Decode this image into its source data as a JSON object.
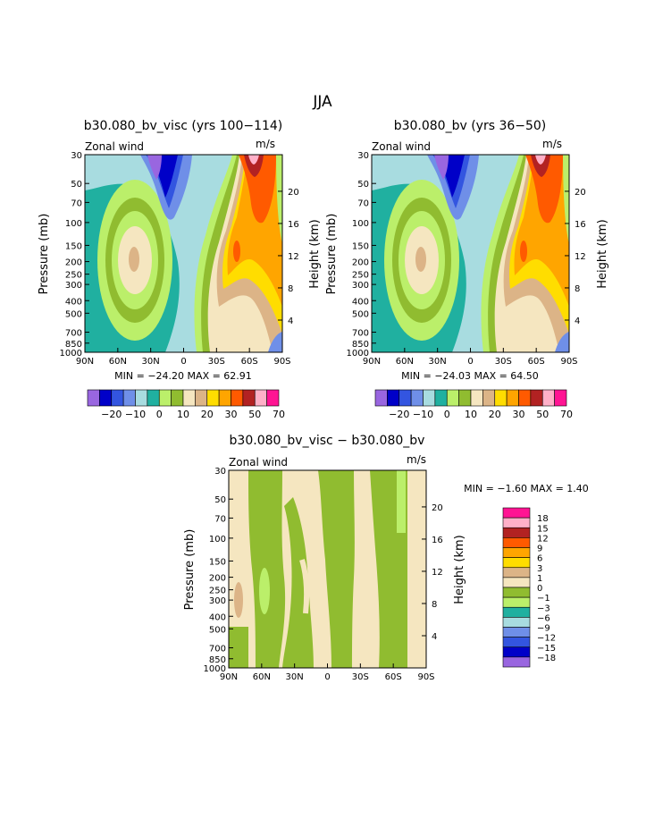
{
  "page_title": "JJA",
  "colors": {
    "palette_main": [
      "#9966e0",
      "#0000c8",
      "#3355e0",
      "#6f8fe8",
      "#a8dce0",
      "#20b0a0",
      "#bbef6a",
      "#90bc30",
      "#f5e6c0",
      "#dcb487",
      "#ffdd00",
      "#ffa500",
      "#ff5a00",
      "#b22222",
      "#ffb0c8",
      "#ff1493"
    ],
    "palette_diff": [
      "#ff1493",
      "#ffb0c8",
      "#b22222",
      "#ff5a00",
      "#ffa500",
      "#ffdd00",
      "#dcb487",
      "#f5e6c0",
      "#90bc30",
      "#bbef6a",
      "#20b0a0",
      "#a8dce0",
      "#6f8fe8",
      "#3355e0",
      "#0000c8",
      "#9966e0"
    ]
  },
  "chart_data": [
    {
      "type": "heatmap",
      "title": "b30.080_bv_visc (yrs 100−114)",
      "subtitle_left": "Zonal wind",
      "subtitle_right": "m/s",
      "xlabel": "",
      "ylabel": "Pressure (mb)",
      "ylabel_right": "Height (km)",
      "x_ticks": [
        "90N",
        "60N",
        "30N",
        "0",
        "30S",
        "60S",
        "90S"
      ],
      "y_ticks": [
        "30",
        "50",
        "70",
        "100",
        "150",
        "200",
        "250",
        "300",
        "400",
        "500",
        "700",
        "850",
        "1000"
      ],
      "y_right_ticks": [
        "20",
        "16",
        "12",
        "8",
        "4"
      ],
      "minmax": "MIN = −24.20   MAX =   62.91",
      "legend_labels": [
        "−20",
        "−10",
        "0",
        "10",
        "20",
        "30",
        "50",
        "70"
      ],
      "min": -24.2,
      "max": 62.91
    },
    {
      "type": "heatmap",
      "title": "b30.080_bv (yrs 36−50)",
      "subtitle_left": "Zonal wind",
      "subtitle_right": "m/s",
      "xlabel": "",
      "ylabel": "Pressure (mb)",
      "ylabel_right": "Height (km)",
      "x_ticks": [
        "90N",
        "60N",
        "30N",
        "0",
        "30S",
        "60S",
        "90S"
      ],
      "y_ticks": [
        "30",
        "50",
        "70",
        "100",
        "150",
        "200",
        "250",
        "300",
        "400",
        "500",
        "700",
        "850",
        "1000"
      ],
      "y_right_ticks": [
        "20",
        "16",
        "12",
        "8",
        "4"
      ],
      "minmax": "MIN = −24.03   MAX =   64.50",
      "legend_labels": [
        "−20",
        "−10",
        "0",
        "10",
        "20",
        "30",
        "50",
        "70"
      ],
      "min": -24.03,
      "max": 64.5
    },
    {
      "type": "heatmap",
      "title": "b30.080_bv_visc − b30.080_bv",
      "subtitle_left": "Zonal wind",
      "subtitle_right": "m/s",
      "xlabel": "",
      "ylabel": "Pressure (mb)",
      "ylabel_right": "Height (km)",
      "x_ticks": [
        "90N",
        "60N",
        "30N",
        "0",
        "30S",
        "60S",
        "90S"
      ],
      "y_ticks": [
        "30",
        "50",
        "70",
        "100",
        "150",
        "200",
        "250",
        "300",
        "400",
        "500",
        "700",
        "850",
        "1000"
      ],
      "y_right_ticks": [
        "20",
        "16",
        "12",
        "8",
        "4"
      ],
      "minmax": "MIN =   −1.60   MAX =    1.40",
      "legend_labels": [
        "18",
        "15",
        "12",
        "9",
        "6",
        "3",
        "1",
        "0",
        "−1",
        "−3",
        "−6",
        "−9",
        "−12",
        "−15",
        "−18"
      ],
      "min": -1.6,
      "max": 1.4
    }
  ]
}
